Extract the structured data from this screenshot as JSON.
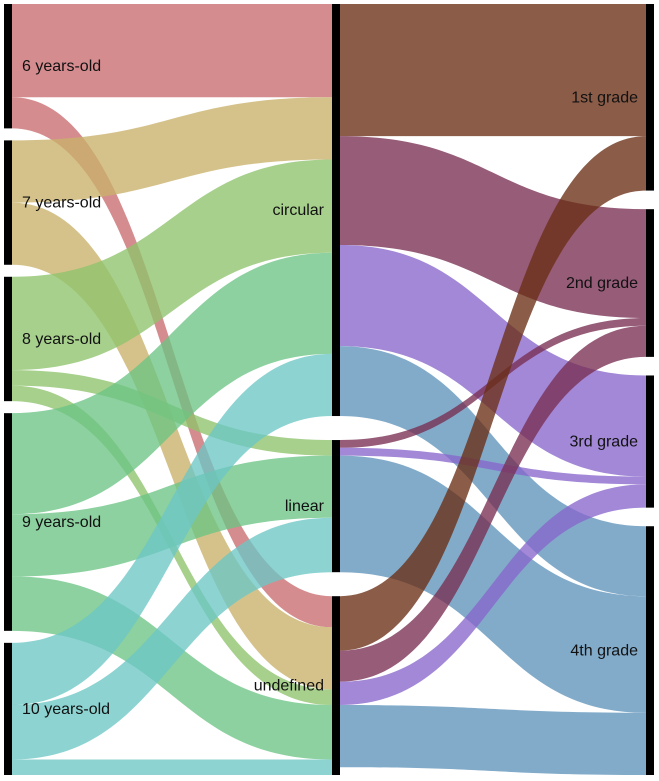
{
  "chart_data": {
    "type": "sankey",
    "columns": [
      [
        {
          "id": "age6",
          "label": "6 years-old"
        },
        {
          "id": "age7",
          "label": "7 years-old"
        },
        {
          "id": "age8",
          "label": "8 years-old"
        },
        {
          "id": "age9",
          "label": "9 years-old"
        },
        {
          "id": "age10",
          "label": "10 years-old"
        }
      ],
      [
        {
          "id": "circular",
          "label": "circular"
        },
        {
          "id": "linear",
          "label": "linear"
        },
        {
          "id": "undefined",
          "label": "undefined"
        }
      ],
      [
        {
          "id": "grade1",
          "label": "1st grade"
        },
        {
          "id": "grade2",
          "label": "2nd grade"
        },
        {
          "id": "grade3",
          "label": "3rd grade"
        },
        {
          "id": "grade4",
          "label": "4th grade"
        }
      ]
    ],
    "links": [
      {
        "source": "age6",
        "target": "circular",
        "value": 12,
        "color": "#c96b6f"
      },
      {
        "source": "age6",
        "target": "undefined",
        "value": 4,
        "color": "#c96b6f"
      },
      {
        "source": "age7",
        "target": "circular",
        "value": 8,
        "color": "#c9b16a"
      },
      {
        "source": "age7",
        "target": "undefined",
        "value": 8,
        "color": "#c9b16a"
      },
      {
        "source": "age8",
        "target": "circular",
        "value": 12,
        "color": "#8ec36b"
      },
      {
        "source": "age8",
        "target": "linear",
        "value": 2,
        "color": "#8ec36b"
      },
      {
        "source": "age8",
        "target": "undefined",
        "value": 2,
        "color": "#8ec36b"
      },
      {
        "source": "age9",
        "target": "circular",
        "value": 13,
        "color": "#6bc484"
      },
      {
        "source": "age9",
        "target": "linear",
        "value": 8,
        "color": "#6bc484"
      },
      {
        "source": "age9",
        "target": "undefined",
        "value": 7,
        "color": "#6bc484"
      },
      {
        "source": "age10",
        "target": "circular",
        "value": 8,
        "color": "#6cc6c5"
      },
      {
        "source": "age10",
        "target": "linear",
        "value": 7,
        "color": "#6cc6c5"
      },
      {
        "source": "age10",
        "target": "undefined",
        "value": 2,
        "color": "#6cc6c5"
      },
      {
        "source": "circular",
        "target": "grade1",
        "value": 17,
        "color": "#6a2e14"
      },
      {
        "source": "circular",
        "target": "grade2",
        "value": 14,
        "color": "#792e52"
      },
      {
        "source": "circular",
        "target": "grade3",
        "value": 13,
        "color": "#8866cc"
      },
      {
        "source": "circular",
        "target": "grade4",
        "value": 9,
        "color": "#5f93bb"
      },
      {
        "source": "linear",
        "target": "grade2",
        "value": 1,
        "color": "#792e52"
      },
      {
        "source": "linear",
        "target": "grade3",
        "value": 1,
        "color": "#8866cc"
      },
      {
        "source": "linear",
        "target": "grade4",
        "value": 15,
        "color": "#5f93bb"
      },
      {
        "source": "undefined",
        "target": "grade1",
        "value": 7,
        "color": "#6a2e14"
      },
      {
        "source": "undefined",
        "target": "grade2",
        "value": 4,
        "color": "#792e52"
      },
      {
        "source": "undefined",
        "target": "grade3",
        "value": 3,
        "color": "#8866cc"
      },
      {
        "source": "undefined",
        "target": "grade4",
        "value": 8,
        "color": "#5f93bb"
      }
    ]
  }
}
